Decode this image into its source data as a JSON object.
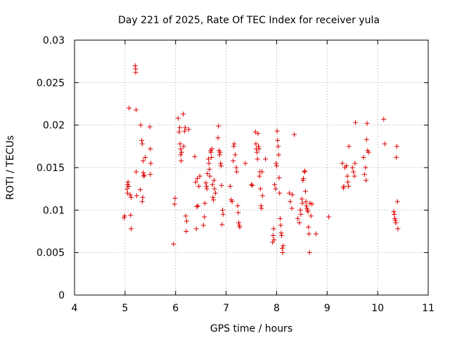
{
  "chart_data": {
    "type": "scatter",
    "title": "Day 221 of 2025, Rate Of TEC Index for receiver yula",
    "xlabel": "GPS time / hours",
    "ylabel": "ROTI / TECUs",
    "xlim": [
      4,
      11
    ],
    "ylim": [
      0,
      0.03
    ],
    "x_ticks": [
      "4",
      "5",
      "6",
      "7",
      "8",
      "9",
      "10",
      "11"
    ],
    "y_ticks": [
      "0",
      "0.005",
      "0.01",
      "0.015",
      "0.02",
      "0.025",
      "0.03"
    ],
    "grid": true,
    "marker": "plus",
    "color": "#dd0000",
    "series": [
      {
        "points": [
          [
            4.98,
            0.0091
          ],
          [
            4.99,
            0.0093
          ],
          [
            5.04,
            0.0125
          ],
          [
            5.05,
            0.013
          ],
          [
            5.05,
            0.012
          ],
          [
            5.06,
            0.0133
          ],
          [
            5.07,
            0.0128
          ],
          [
            5.08,
            0.022
          ],
          [
            5.1,
            0.0118
          ],
          [
            5.11,
            0.0094
          ],
          [
            5.12,
            0.0078
          ],
          [
            5.12,
            0.0115
          ],
          [
            5.2,
            0.027
          ],
          [
            5.21,
            0.0262
          ],
          [
            5.21,
            0.0266
          ],
          [
            5.22,
            0.0218
          ],
          [
            5.22,
            0.0145
          ],
          [
            5.23,
            0.0117
          ],
          [
            5.3,
            0.0124
          ],
          [
            5.31,
            0.02
          ],
          [
            5.33,
            0.0182
          ],
          [
            5.34,
            0.011
          ],
          [
            5.34,
            0.0178
          ],
          [
            5.35,
            0.0115
          ],
          [
            5.36,
            0.0144
          ],
          [
            5.36,
            0.0158
          ],
          [
            5.37,
            0.014
          ],
          [
            5.38,
            0.0141
          ],
          [
            5.4,
            0.0162
          ],
          [
            5.49,
            0.0198
          ],
          [
            5.5,
            0.0142
          ],
          [
            5.5,
            0.0172
          ],
          [
            5.51,
            0.0155
          ],
          [
            5.96,
            0.006
          ],
          [
            5.98,
            0.0107
          ],
          [
            5.99,
            0.0114
          ],
          [
            6.05,
            0.0208
          ],
          [
            6.07,
            0.0192
          ],
          [
            6.08,
            0.0197
          ],
          [
            6.09,
            0.0178
          ],
          [
            6.1,
            0.0172
          ],
          [
            6.1,
            0.0165
          ],
          [
            6.11,
            0.0158
          ],
          [
            6.12,
            0.0168
          ],
          [
            6.15,
            0.0213
          ],
          [
            6.16,
            0.0175
          ],
          [
            6.18,
            0.0193
          ],
          [
            6.19,
            0.0197
          ],
          [
            6.2,
            0.0093
          ],
          [
            6.21,
            0.0075
          ],
          [
            6.22,
            0.0087
          ],
          [
            6.26,
            0.0195
          ],
          [
            6.38,
            0.0163
          ],
          [
            6.4,
            0.0133
          ],
          [
            6.41,
            0.0078
          ],
          [
            6.42,
            0.0104
          ],
          [
            6.43,
            0.0137
          ],
          [
            6.44,
            0.0105
          ],
          [
            6.46,
            0.0128
          ],
          [
            6.48,
            0.014
          ],
          [
            6.55,
            0.0082
          ],
          [
            6.57,
            0.0092
          ],
          [
            6.58,
            0.0108
          ],
          [
            6.6,
            0.0132
          ],
          [
            6.61,
            0.0128
          ],
          [
            6.62,
            0.0125
          ],
          [
            6.63,
            0.0143
          ],
          [
            6.65,
            0.016
          ],
          [
            6.66,
            0.0155
          ],
          [
            6.67,
            0.0148
          ],
          [
            6.68,
            0.014
          ],
          [
            6.69,
            0.017
          ],
          [
            6.7,
            0.0168
          ],
          [
            6.71,
            0.0162
          ],
          [
            6.72,
            0.0172
          ],
          [
            6.73,
            0.013
          ],
          [
            6.74,
            0.0115
          ],
          [
            6.75,
            0.0112
          ],
          [
            6.76,
            0.0135
          ],
          [
            6.77,
            0.0125
          ],
          [
            6.79,
            0.012
          ],
          [
            6.84,
            0.0185
          ],
          [
            6.85,
            0.0199
          ],
          [
            6.86,
            0.017
          ],
          [
            6.87,
            0.0165
          ],
          [
            6.88,
            0.0168
          ],
          [
            6.89,
            0.0155
          ],
          [
            6.9,
            0.0152
          ],
          [
            6.91,
            0.0129
          ],
          [
            6.92,
            0.0083
          ],
          [
            6.93,
            0.01
          ],
          [
            6.94,
            0.0095
          ],
          [
            7.08,
            0.0128
          ],
          [
            7.1,
            0.0112
          ],
          [
            7.12,
            0.011
          ],
          [
            7.14,
            0.0158
          ],
          [
            7.15,
            0.0175
          ],
          [
            7.16,
            0.0178
          ],
          [
            7.18,
            0.0165
          ],
          [
            7.2,
            0.015
          ],
          [
            7.21,
            0.0145
          ],
          [
            7.23,
            0.0105
          ],
          [
            7.24,
            0.0097
          ],
          [
            7.25,
            0.0085
          ],
          [
            7.26,
            0.0082
          ],
          [
            7.27,
            0.008
          ],
          [
            7.38,
            0.0155
          ],
          [
            7.5,
            0.013
          ],
          [
            7.52,
            0.0129
          ],
          [
            7.58,
            0.0192
          ],
          [
            7.59,
            0.0178
          ],
          [
            7.6,
            0.0172
          ],
          [
            7.61,
            0.0168
          ],
          [
            7.62,
            0.016
          ],
          [
            7.63,
            0.019
          ],
          [
            7.64,
            0.0175
          ],
          [
            7.65,
            0.0172
          ],
          [
            7.66,
            0.014
          ],
          [
            7.67,
            0.0145
          ],
          [
            7.68,
            0.0125
          ],
          [
            7.69,
            0.0105
          ],
          [
            7.7,
            0.0102
          ],
          [
            7.71,
            0.0145
          ],
          [
            7.72,
            0.0117
          ],
          [
            7.78,
            0.016
          ],
          [
            7.92,
            0.0062
          ],
          [
            7.93,
            0.007
          ],
          [
            7.94,
            0.0078
          ],
          [
            7.95,
            0.0065
          ],
          [
            7.96,
            0.013
          ],
          [
            7.98,
            0.0125
          ],
          [
            7.99,
            0.0155
          ],
          [
            8.0,
            0.0152
          ],
          [
            8.01,
            0.0193
          ],
          [
            8.02,
            0.0182
          ],
          [
            8.03,
            0.0175
          ],
          [
            8.04,
            0.0165
          ],
          [
            8.05,
            0.0138
          ],
          [
            8.06,
            0.012
          ],
          [
            8.07,
            0.009
          ],
          [
            8.08,
            0.0082
          ],
          [
            8.09,
            0.0073
          ],
          [
            8.1,
            0.007
          ],
          [
            8.11,
            0.0055
          ],
          [
            8.12,
            0.005
          ],
          [
            8.13,
            0.0058
          ],
          [
            8.25,
            0.012
          ],
          [
            8.27,
            0.011
          ],
          [
            8.3,
            0.0102
          ],
          [
            8.31,
            0.0118
          ],
          [
            8.35,
            0.0189
          ],
          [
            8.42,
            0.009
          ],
          [
            8.45,
            0.0085
          ],
          [
            8.47,
            0.01
          ],
          [
            8.48,
            0.0095
          ],
          [
            8.5,
            0.0113
          ],
          [
            8.51,
            0.0108
          ],
          [
            8.52,
            0.0135
          ],
          [
            8.53,
            0.0137
          ],
          [
            8.55,
            0.0145
          ],
          [
            8.56,
            0.0146
          ],
          [
            8.57,
            0.0122
          ],
          [
            8.58,
            0.011
          ],
          [
            8.59,
            0.0105
          ],
          [
            8.6,
            0.0102
          ],
          [
            8.61,
            0.01
          ],
          [
            8.62,
            0.0098
          ],
          [
            8.63,
            0.008
          ],
          [
            8.64,
            0.0072
          ],
          [
            8.65,
            0.005
          ],
          [
            8.66,
            0.0108
          ],
          [
            8.68,
            0.0093
          ],
          [
            8.7,
            0.0107
          ],
          [
            8.78,
            0.0072
          ],
          [
            9.03,
            0.0092
          ],
          [
            9.3,
            0.0155
          ],
          [
            9.32,
            0.0126
          ],
          [
            9.33,
            0.0128
          ],
          [
            9.35,
            0.015
          ],
          [
            9.38,
            0.0152
          ],
          [
            9.4,
            0.014
          ],
          [
            9.41,
            0.0133
          ],
          [
            9.42,
            0.0128
          ],
          [
            9.43,
            0.0175
          ],
          [
            9.5,
            0.015
          ],
          [
            9.52,
            0.0145
          ],
          [
            9.54,
            0.014
          ],
          [
            9.55,
            0.0155
          ],
          [
            9.56,
            0.0203
          ],
          [
            9.72,
            0.0162
          ],
          [
            9.74,
            0.0142
          ],
          [
            9.76,
            0.015
          ],
          [
            9.77,
            0.0135
          ],
          [
            9.78,
            0.0183
          ],
          [
            9.79,
            0.0202
          ],
          [
            9.8,
            0.017
          ],
          [
            9.82,
            0.0168
          ],
          [
            10.12,
            0.0207
          ],
          [
            10.14,
            0.0178
          ],
          [
            10.32,
            0.0098
          ],
          [
            10.33,
            0.0095
          ],
          [
            10.34,
            0.009
          ],
          [
            10.35,
            0.0088
          ],
          [
            10.36,
            0.0085
          ],
          [
            10.37,
            0.0162
          ],
          [
            10.38,
            0.0175
          ],
          [
            10.39,
            0.011
          ],
          [
            10.4,
            0.0078
          ]
        ]
      }
    ]
  }
}
